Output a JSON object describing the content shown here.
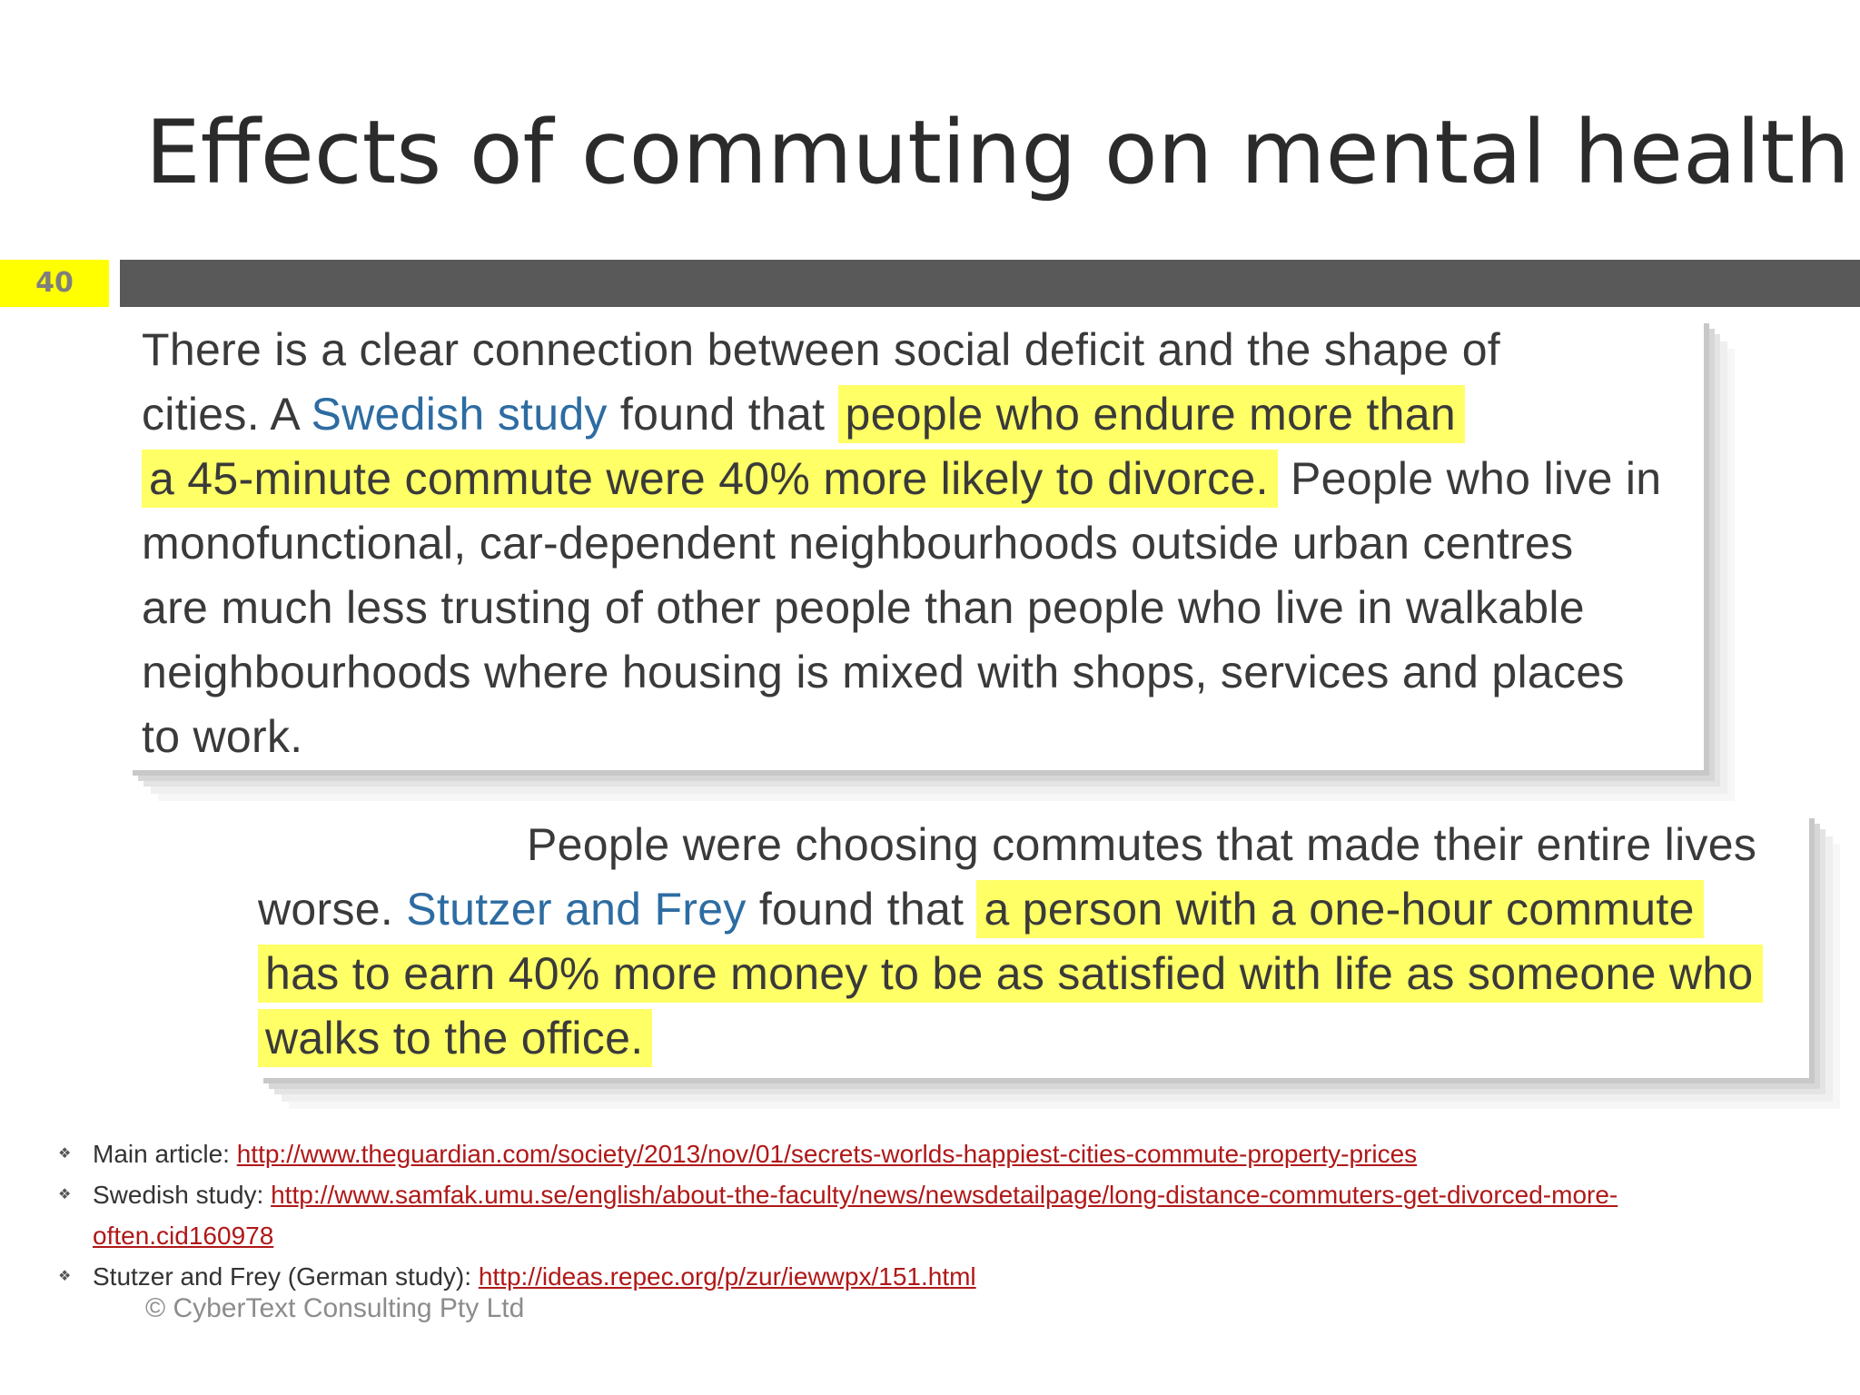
{
  "slide": {
    "title": "Effects of commuting on mental health",
    "number": "40",
    "accent_color": "#ffff00",
    "bar_color": "#595959",
    "highlight_color": "#ffff66"
  },
  "excerpt1": {
    "lines": [
      {
        "text": "There is a clear connection between social deficit and the shape of"
      },
      {
        "before": "cities. A ",
        "link": "Swedish study",
        "middle": " found that ",
        "highlight": "people who endure more than"
      },
      {
        "highlight": "a 45-minute commute were 40% more likely to divorce.",
        "after": " People who live in"
      },
      {
        "text": "monofunctional, car-dependent neighbourhoods outside urban centres"
      },
      {
        "text": "are much less trusting of other people than people who live in walkable"
      },
      {
        "text": "neighbourhoods where housing is mixed with shops, services and places"
      },
      {
        "text": "to work."
      }
    ]
  },
  "excerpt2": {
    "lines": [
      {
        "text": "People were choosing commutes that made their entire lives"
      },
      {
        "before": "worse. ",
        "link": "Stutzer and Frey",
        "middle": " found that ",
        "highlight": "a person with a one-hour commute"
      },
      {
        "highlight": "has to earn 40% more money to be as satisfied with life as someone who"
      },
      {
        "highlight": "walks to the office."
      }
    ]
  },
  "sources": [
    {
      "label": "Main article: ",
      "url": "http://www.theguardian.com/society/2013/nov/01/secrets-worlds-happiest-cities-commute-property-prices"
    },
    {
      "label": "Swedish study: ",
      "url": "http://www.samfak.umu.se/english/about-the-faculty/news/newsdetailpage/long-distance-commuters-get-divorced-more-often.cid160978"
    },
    {
      "label": "Stutzer and Frey (German study): ",
      "url": "http://ideas.repec.org/p/zur/iewwpx/151.html"
    }
  ],
  "bullet_icon": "diamond-cluster-icon",
  "footer": "© CyberText Consulting Pty Ltd"
}
